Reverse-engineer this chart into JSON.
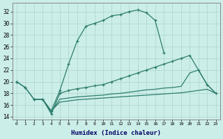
{
  "xlabel": "Humidex (Indice chaleur)",
  "background_color": "#cceee8",
  "grid_color": "#aad4cc",
  "line_color": "#2d7d6e",
  "xlim": [
    -0.5,
    23.5
  ],
  "ylim": [
    13.5,
    33.5
  ],
  "yticks": [
    14,
    16,
    18,
    20,
    22,
    24,
    26,
    28,
    30,
    32
  ],
  "xticks": [
    0,
    1,
    2,
    3,
    4,
    5,
    6,
    7,
    8,
    9,
    10,
    11,
    12,
    13,
    14,
    15,
    16,
    17,
    18,
    19,
    20,
    21,
    22,
    23
  ],
  "line1_x": [
    0,
    1,
    2,
    3,
    4,
    5,
    6,
    7,
    8,
    9,
    10,
    11,
    12,
    13,
    14,
    15,
    16,
    17
  ],
  "line1_y": [
    20.0,
    19.0,
    17.0,
    17.0,
    15.0,
    18.5,
    23.0,
    27.0,
    29.5,
    30.0,
    30.5,
    31.3,
    31.5,
    32.0,
    32.3,
    31.8,
    30.5,
    25.0
  ],
  "line2_x": [
    0,
    1,
    2,
    3,
    4,
    5,
    6,
    7,
    8,
    9,
    10,
    11,
    12,
    13,
    14,
    15,
    16,
    17,
    18,
    19,
    20,
    21,
    22,
    23
  ],
  "line2_y": [
    20.0,
    19.0,
    17.0,
    17.0,
    14.5,
    18.0,
    18.5,
    18.8,
    19.0,
    19.3,
    19.5,
    20.0,
    20.5,
    21.0,
    21.5,
    22.0,
    22.5,
    23.0,
    23.5,
    24.0,
    24.5,
    22.0,
    19.5,
    18.0
  ],
  "line3_x": [
    2,
    3,
    4,
    5,
    6,
    7,
    8,
    9,
    10,
    11,
    12,
    13,
    14,
    15,
    16,
    17,
    18,
    19,
    20,
    21,
    22,
    23
  ],
  "line3_y": [
    17.0,
    17.0,
    14.8,
    17.0,
    17.2,
    17.4,
    17.5,
    17.6,
    17.7,
    17.9,
    18.0,
    18.2,
    18.4,
    18.6,
    18.7,
    18.9,
    19.0,
    19.2,
    21.5,
    22.0,
    19.5,
    18.0
  ],
  "line4_x": [
    2,
    3,
    4,
    5,
    6,
    7,
    8,
    9,
    10,
    11,
    12,
    13,
    14,
    15,
    16,
    17,
    18,
    19,
    20,
    21,
    22,
    23
  ],
  "line4_y": [
    17.0,
    17.0,
    15.0,
    16.5,
    16.7,
    16.9,
    17.0,
    17.1,
    17.2,
    17.3,
    17.4,
    17.5,
    17.6,
    17.7,
    17.8,
    17.9,
    18.0,
    18.1,
    18.3,
    18.5,
    18.7,
    18.0
  ]
}
